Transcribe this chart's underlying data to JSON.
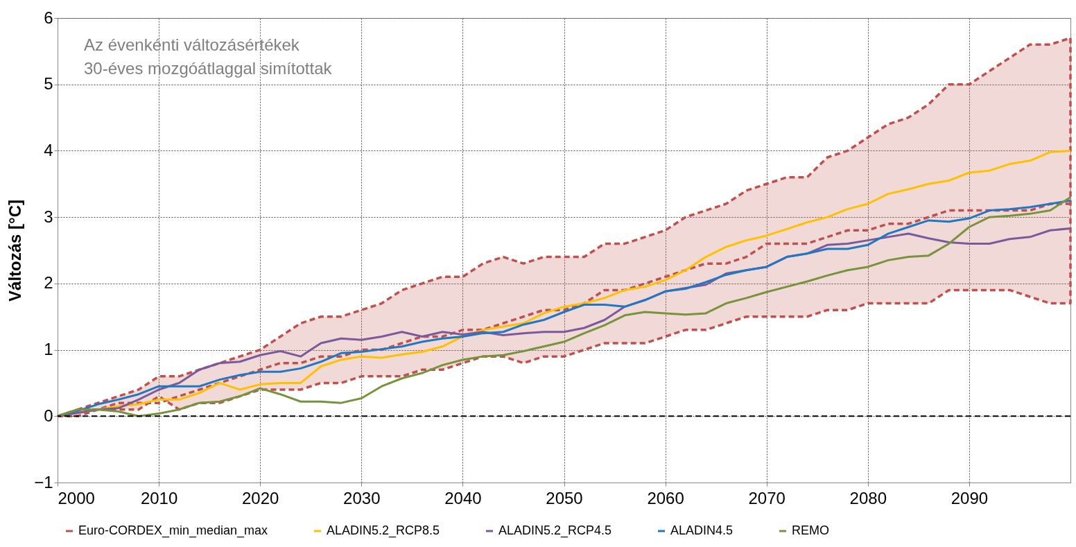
{
  "chart_data": {
    "type": "line",
    "ylabel": "Változás [°C]",
    "annotations": [
      "Az évenkénti változásértékek\n30-éves mozgóátlaggal simítottak"
    ],
    "x": [
      2000,
      2002,
      2004,
      2006,
      2008,
      2010,
      2012,
      2014,
      2016,
      2018,
      2020,
      2022,
      2024,
      2026,
      2028,
      2030,
      2032,
      2034,
      2036,
      2038,
      2040,
      2042,
      2044,
      2046,
      2048,
      2050,
      2052,
      2054,
      2056,
      2058,
      2060,
      2062,
      2064,
      2066,
      2068,
      2070,
      2072,
      2074,
      2076,
      2078,
      2080,
      2082,
      2084,
      2086,
      2088,
      2090,
      2092,
      2094,
      2096,
      2098,
      2100
    ],
    "series": [
      {
        "name": "Euro-CORDEX_min_median_max",
        "color": "#c0504d",
        "line_style": "dashed",
        "values": [
          0,
          0.1,
          0.1,
          0.2,
          0.2,
          0.2,
          0.3,
          0.4,
          0.5,
          0.6,
          0.7,
          0.8,
          0.8,
          0.9,
          0.9,
          1.0,
          1.0,
          1.1,
          1.2,
          1.2,
          1.3,
          1.3,
          1.4,
          1.5,
          1.6,
          1.6,
          1.7,
          1.9,
          1.9,
          2.0,
          2.1,
          2.2,
          2.3,
          2.3,
          2.4,
          2.6,
          2.6,
          2.6,
          2.7,
          2.8,
          2.8,
          2.9,
          2.9,
          3.0,
          3.1,
          3.1,
          3.1,
          3.1,
          3.1,
          3.2,
          3.2
        ],
        "lower": [
          0,
          0,
          0.1,
          0.1,
          0.1,
          0.3,
          0.1,
          0.2,
          0.2,
          0.3,
          0.4,
          0.4,
          0.4,
          0.5,
          0.5,
          0.6,
          0.6,
          0.6,
          0.7,
          0.7,
          0.8,
          0.9,
          0.9,
          0.8,
          0.9,
          0.9,
          1.0,
          1.1,
          1.1,
          1.1,
          1.2,
          1.3,
          1.3,
          1.4,
          1.5,
          1.5,
          1.5,
          1.5,
          1.6,
          1.6,
          1.7,
          1.7,
          1.7,
          1.7,
          1.9,
          1.9,
          1.9,
          1.9,
          1.8,
          1.7,
          1.7
        ],
        "upper": [
          0,
          0.1,
          0.2,
          0.3,
          0.4,
          0.6,
          0.6,
          0.7,
          0.8,
          0.9,
          1.0,
          1.2,
          1.4,
          1.5,
          1.5,
          1.6,
          1.7,
          1.9,
          2.0,
          2.1,
          2.1,
          2.3,
          2.4,
          2.3,
          2.4,
          2.4,
          2.4,
          2.6,
          2.6,
          2.7,
          2.8,
          3.0,
          3.1,
          3.2,
          3.4,
          3.5,
          3.6,
          3.6,
          3.9,
          4.0,
          4.2,
          4.4,
          4.5,
          4.7,
          5.0,
          5.0,
          5.2,
          5.4,
          5.6,
          5.6,
          5.7
        ]
      },
      {
        "name": "ALADIN5.2_RCP8.5",
        "color": "#ffc000",
        "values": [
          0,
          0.05,
          0.1,
          0.15,
          0.18,
          0.25,
          0.25,
          0.35,
          0.5,
          0.4,
          0.48,
          0.5,
          0.5,
          0.75,
          0.85,
          0.9,
          0.88,
          0.93,
          0.97,
          1.05,
          1.2,
          1.3,
          1.35,
          1.4,
          1.55,
          1.65,
          1.7,
          1.78,
          1.9,
          1.95,
          2.05,
          2.2,
          2.4,
          2.55,
          2.65,
          2.72,
          2.82,
          2.92,
          3.0,
          3.12,
          3.2,
          3.35,
          3.42,
          3.5,
          3.55,
          3.67,
          3.7,
          3.8,
          3.85,
          3.98,
          4.0
        ]
      },
      {
        "name": "ALADIN5.2_RCP4.5",
        "color": "#7b5a9c",
        "values": [
          0,
          0.05,
          0.1,
          0.12,
          0.25,
          0.4,
          0.5,
          0.7,
          0.8,
          0.82,
          0.92,
          0.98,
          0.9,
          1.1,
          1.17,
          1.15,
          1.2,
          1.27,
          1.2,
          1.27,
          1.23,
          1.27,
          1.22,
          1.25,
          1.27,
          1.27,
          1.33,
          1.45,
          1.65,
          1.75,
          1.88,
          1.93,
          1.98,
          2.15,
          2.2,
          2.25,
          2.4,
          2.45,
          2.58,
          2.6,
          2.65,
          2.7,
          2.75,
          2.68,
          2.62,
          2.6,
          2.6,
          2.67,
          2.7,
          2.8,
          2.83
        ]
      },
      {
        "name": "ALADIN4.5",
        "color": "#1f78c1",
        "values": [
          0,
          0.08,
          0.18,
          0.25,
          0.33,
          0.45,
          0.45,
          0.45,
          0.55,
          0.62,
          0.67,
          0.67,
          0.72,
          0.82,
          0.95,
          0.97,
          1.01,
          1.05,
          1.12,
          1.17,
          1.2,
          1.25,
          1.27,
          1.38,
          1.45,
          1.57,
          1.68,
          1.68,
          1.65,
          1.75,
          1.88,
          1.92,
          2.02,
          2.13,
          2.2,
          2.25,
          2.4,
          2.45,
          2.52,
          2.52,
          2.58,
          2.75,
          2.85,
          2.95,
          2.93,
          2.98,
          3.1,
          3.12,
          3.15,
          3.2,
          3.25
        ]
      },
      {
        "name": "REMO",
        "color": "#77933c",
        "values": [
          0,
          0.1,
          0.1,
          0.07,
          0.0,
          0.04,
          0.1,
          0.2,
          0.22,
          0.3,
          0.42,
          0.33,
          0.22,
          0.22,
          0.2,
          0.27,
          0.45,
          0.57,
          0.65,
          0.77,
          0.85,
          0.9,
          0.92,
          0.98,
          1.05,
          1.12,
          1.25,
          1.37,
          1.52,
          1.57,
          1.55,
          1.53,
          1.55,
          1.7,
          1.78,
          1.87,
          1.95,
          2.03,
          2.12,
          2.2,
          2.25,
          2.35,
          2.4,
          2.42,
          2.6,
          2.85,
          3.0,
          3.02,
          3.05,
          3.1,
          3.3
        ]
      }
    ],
    "xlim": [
      2000,
      2100
    ],
    "xticks": [
      2000,
      2010,
      2020,
      2030,
      2040,
      2050,
      2060,
      2070,
      2080,
      2090
    ],
    "ylim": [
      -1,
      6
    ],
    "yticks": [
      -1,
      0,
      1,
      2,
      3,
      4,
      5,
      6
    ],
    "ref_lines": [
      {
        "axis": "y",
        "value": 0,
        "color": "#000000",
        "line_style": "dashed"
      }
    ],
    "grid": true,
    "legend": "bottom",
    "marker": "none",
    "line_style": "solid"
  }
}
